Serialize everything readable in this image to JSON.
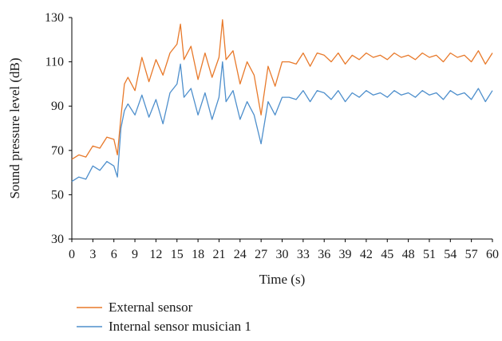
{
  "chart_data": {
    "type": "line",
    "xlabel": "Time (s)",
    "ylabel": "Sound pressure level (dB)",
    "xlim": [
      0,
      60
    ],
    "ylim": [
      30,
      130
    ],
    "x_ticks": [
      0,
      3,
      6,
      9,
      12,
      15,
      18,
      21,
      24,
      27,
      30,
      33,
      36,
      39,
      42,
      45,
      48,
      51,
      54,
      57,
      60
    ],
    "y_ticks": [
      30,
      50,
      70,
      90,
      110,
      130
    ],
    "grid": false,
    "legend_position": "bottom-left",
    "x": [
      0,
      1,
      2,
      3,
      4,
      5,
      6,
      6.5,
      7,
      7.5,
      8,
      9,
      10,
      11,
      12,
      13,
      14,
      15,
      15.5,
      16,
      17,
      18,
      19,
      20,
      21,
      21.5,
      22,
      23,
      24,
      25,
      26,
      27,
      28,
      29,
      30,
      31,
      32,
      33,
      34,
      35,
      36,
      37,
      38,
      39,
      40,
      41,
      42,
      43,
      44,
      45,
      46,
      47,
      48,
      49,
      50,
      51,
      52,
      53,
      54,
      55,
      56,
      57,
      58,
      59,
      60
    ],
    "series": [
      {
        "name": "External sensor",
        "color": "#E8792A",
        "values": [
          66,
          68,
          67,
          72,
          71,
          76,
          75,
          68,
          85,
          100,
          103,
          97,
          112,
          101,
          111,
          104,
          114,
          118,
          127,
          111,
          117,
          102,
          114,
          103,
          112,
          129,
          111,
          115,
          100,
          110,
          104,
          86,
          108,
          99,
          110,
          110,
          109,
          114,
          108,
          114,
          113,
          110,
          114,
          109,
          113,
          111,
          114,
          112,
          113,
          111,
          114,
          112,
          113,
          111,
          114,
          112,
          113,
          110,
          114,
          112,
          113,
          110,
          115,
          109,
          114
        ]
      },
      {
        "name": "Internal sensor musician 1",
        "color": "#4E8FCC",
        "values": [
          56,
          58,
          57,
          63,
          61,
          65,
          63,
          58,
          80,
          88,
          91,
          86,
          95,
          85,
          93,
          82,
          96,
          100,
          109,
          94,
          98,
          86,
          96,
          84,
          94,
          110,
          92,
          97,
          84,
          92,
          86,
          73,
          92,
          86,
          94,
          94,
          93,
          97,
          92,
          97,
          96,
          93,
          97,
          92,
          96,
          94,
          97,
          95,
          96,
          94,
          97,
          95,
          96,
          94,
          97,
          95,
          96,
          93,
          97,
          95,
          96,
          93,
          98,
          92,
          97
        ]
      }
    ]
  }
}
